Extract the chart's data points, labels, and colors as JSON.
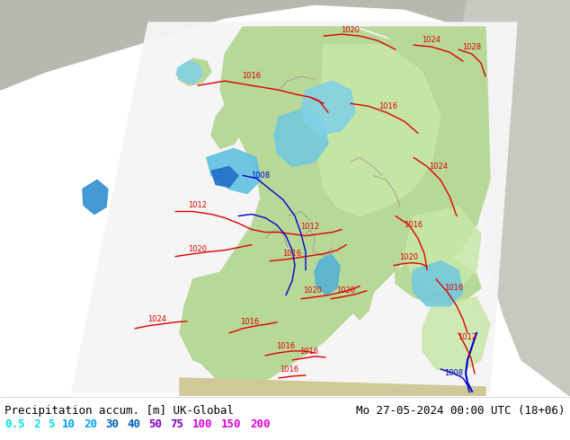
{
  "title_left": "Precipitation accum. [m] UK-Global",
  "title_right": "Mo 27-05-2024 00:00 UTC (18+06)",
  "legend_values": [
    "0.5",
    "2",
    "5",
    "10",
    "20",
    "30",
    "40",
    "50",
    "75",
    "100",
    "150",
    "200"
  ],
  "legend_colors": [
    "#00e0e0",
    "#00e0e0",
    "#00e0e0",
    "#00a0f0",
    "#00a0f0",
    "#0060c0",
    "#0060c0",
    "#8000c0",
    "#8000c0",
    "#e000e0",
    "#e000e0",
    "#e000e0"
  ],
  "bg_color": "#c8c0a0",
  "domain_color": "#f0f0f0",
  "ocean_gray": "#c0c0c0",
  "land_green": "#b8d898",
  "precip_lightgreen": "#c0e8a0",
  "precip_lightcyan": "#a0d8e8",
  "precip_cyan": "#60c8e0",
  "precip_blue": "#2080d0",
  "precip_darkblue": "#1060b0",
  "border_color": "#808080",
  "figure_bg": "#ffffff",
  "text_color": "#000000",
  "isobar_red": "#dd0000",
  "isobar_blue": "#0000cc",
  "font_size_title": 9,
  "font_size_legend": 9,
  "font_size_isobar": 6,
  "fig_width": 6.34,
  "fig_height": 4.9
}
